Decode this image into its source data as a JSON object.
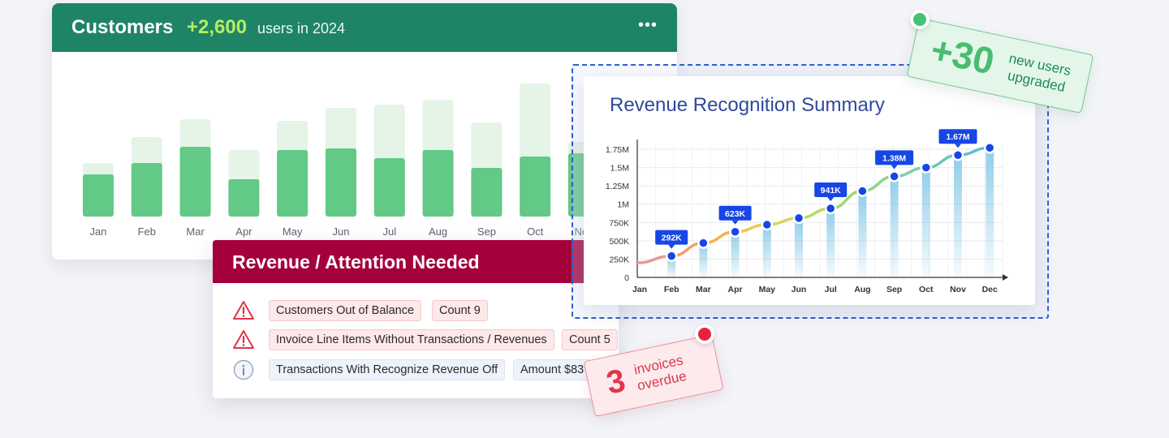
{
  "customers": {
    "title": "Customers",
    "delta": "+2,600",
    "delta_label": "users in 2024",
    "menu_icon": "more-horizontal-icon",
    "chart_data": {
      "type": "bar",
      "categories": [
        "Jan",
        "Feb",
        "Mar",
        "Apr",
        "May",
        "Jun",
        "Jul",
        "Aug",
        "Sep",
        "Oct",
        "Nov"
      ],
      "values": [
        52,
        66,
        86,
        46,
        82,
        84,
        72,
        82,
        60,
        74,
        78
      ],
      "totals": [
        66,
        98,
        120,
        82,
        118,
        134,
        138,
        144,
        116,
        164,
        92
      ],
      "colors": {
        "value": "#62c986",
        "total": "#e4f4e6"
      }
    }
  },
  "attention": {
    "title": "Revenue / Attention Needed",
    "rows": [
      {
        "icon": "warning-icon",
        "label": "Customers Out of Balance",
        "metric": "Count 9"
      },
      {
        "icon": "warning-icon",
        "label": "Invoice Line Items Without Transactions / Revenues",
        "metric": "Count 5"
      },
      {
        "icon": "info-icon",
        "label": "Transactions With Recognize Revenue Off",
        "metric": "Amount $83"
      }
    ],
    "colors": {
      "header": "#a4003c",
      "warning": "#e1334a",
      "info": "#9aa7c2"
    }
  },
  "revenue": {
    "title": "Revenue Recognition Summary",
    "chart_data": {
      "type": "line",
      "x": [
        "Jan",
        "Feb",
        "Mar",
        "Apr",
        "May",
        "Jun",
        "Jul",
        "Aug",
        "Sep",
        "Oct",
        "Nov",
        "Dec"
      ],
      "y": [
        220000,
        292000,
        470000,
        623000,
        720000,
        810000,
        941000,
        1180000,
        1380000,
        1500000,
        1670000,
        1770000
      ],
      "y_ticks": [
        "0",
        "250K",
        "500K",
        "750K",
        "1M",
        "1.25M",
        "1.5M",
        "1.75M"
      ],
      "y_range": [
        0,
        1750000
      ],
      "labels": [
        {
          "index": 1,
          "text": "292K"
        },
        {
          "index": 3,
          "text": "623K"
        },
        {
          "index": 6,
          "text": "941K"
        },
        {
          "index": 8,
          "text": "1.38M"
        },
        {
          "index": 10,
          "text": "1.67M"
        }
      ],
      "grid": true,
      "colors": {
        "point": "#1746e6",
        "bar": "#8bcbe8",
        "label": "#1746e6"
      }
    }
  },
  "notes": {
    "users": {
      "number": "+30",
      "line1": "new users",
      "line2": "upgraded"
    },
    "invoices": {
      "number": "3",
      "line1": "invoices",
      "line2": "overdue"
    }
  }
}
